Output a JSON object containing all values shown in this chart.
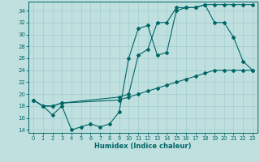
{
  "xlabel": "Humidex (Indice chaleur)",
  "bg_color": "#c0e0e0",
  "grid_color": "#a0cccc",
  "line_color": "#006666",
  "xlim": [
    -0.5,
    23.5
  ],
  "ylim": [
    13.5,
    35.5
  ],
  "yticks": [
    14,
    16,
    18,
    20,
    22,
    24,
    26,
    28,
    30,
    32,
    34
  ],
  "xticks": [
    0,
    1,
    2,
    3,
    4,
    5,
    6,
    7,
    8,
    9,
    10,
    11,
    12,
    13,
    14,
    15,
    16,
    17,
    18,
    19,
    20,
    21,
    22,
    23
  ],
  "line1_x": [
    0,
    1,
    2,
    3,
    4,
    5,
    6,
    7,
    8,
    9,
    10,
    11,
    12,
    13,
    14,
    15,
    16,
    17,
    18,
    19,
    20,
    21,
    22,
    23
  ],
  "line1_y": [
    19.0,
    18.0,
    16.5,
    18.0,
    14.0,
    14.5,
    15.0,
    14.5,
    15.0,
    17.0,
    26.0,
    31.0,
    31.5,
    26.5,
    27.0,
    34.0,
    34.5,
    34.5,
    35.0,
    32.0,
    32.0,
    29.5,
    25.5,
    24.0
  ],
  "line2_x": [
    0,
    1,
    2,
    3,
    9,
    10,
    11,
    12,
    13,
    14,
    15,
    16,
    17,
    18,
    19,
    20,
    21,
    22,
    23
  ],
  "line2_y": [
    19.0,
    18.0,
    18.0,
    18.5,
    19.5,
    20.0,
    26.5,
    27.5,
    32.0,
    32.0,
    34.5,
    34.5,
    34.5,
    35.0,
    35.0,
    35.0,
    35.0,
    35.0,
    35.0
  ],
  "line3_x": [
    0,
    1,
    2,
    3,
    9,
    10,
    11,
    12,
    13,
    14,
    15,
    16,
    17,
    18,
    19,
    20,
    21,
    22,
    23
  ],
  "line3_y": [
    19.0,
    18.0,
    18.0,
    18.5,
    19.0,
    19.5,
    20.0,
    20.5,
    21.0,
    21.5,
    22.0,
    22.5,
    23.0,
    23.5,
    24.0,
    24.0,
    24.0,
    24.0,
    24.0
  ]
}
